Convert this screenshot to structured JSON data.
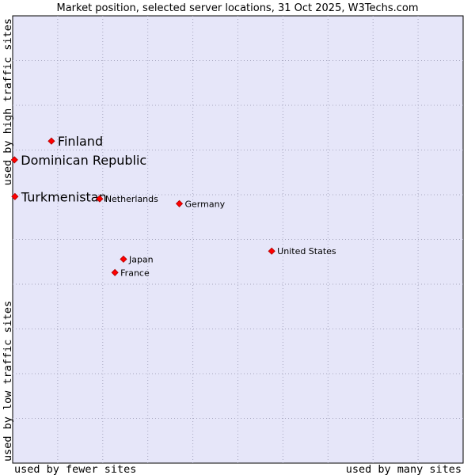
{
  "chart_data": {
    "type": "scatter",
    "title": "Market position, selected server locations, 31 Oct 2025, W3Techs.com",
    "xlabel_left": "used by fewer sites",
    "xlabel_right": "used by many sites",
    "ylabel_top": "used by high traffic sites",
    "ylabel_bottom": "used by low traffic sites",
    "xlim": [
      0,
      100
    ],
    "ylim": [
      0,
      100
    ],
    "grid": true,
    "colors": {
      "plot_bg": "#e6e6f9",
      "grid": "#a8a8c0",
      "marker": "#ff0000",
      "marker_edge": "#b00000",
      "text": "#000000"
    },
    "points": [
      {
        "label": "Finland",
        "x": 8.6,
        "y": 72.0,
        "emphasis": true
      },
      {
        "label": "Dominican Republic",
        "x": 0.4,
        "y": 67.8,
        "emphasis": true
      },
      {
        "label": "Turkmenistan",
        "x": 0.5,
        "y": 59.6,
        "emphasis": true
      },
      {
        "label": "Netherlands",
        "x": 19.3,
        "y": 59.1,
        "emphasis": false
      },
      {
        "label": "Germany",
        "x": 37.0,
        "y": 58.0,
        "emphasis": false
      },
      {
        "label": "United States",
        "x": 57.5,
        "y": 47.4,
        "emphasis": false
      },
      {
        "label": "Japan",
        "x": 24.6,
        "y": 45.6,
        "emphasis": false
      },
      {
        "label": "France",
        "x": 22.7,
        "y": 42.6,
        "emphasis": false
      }
    ]
  }
}
